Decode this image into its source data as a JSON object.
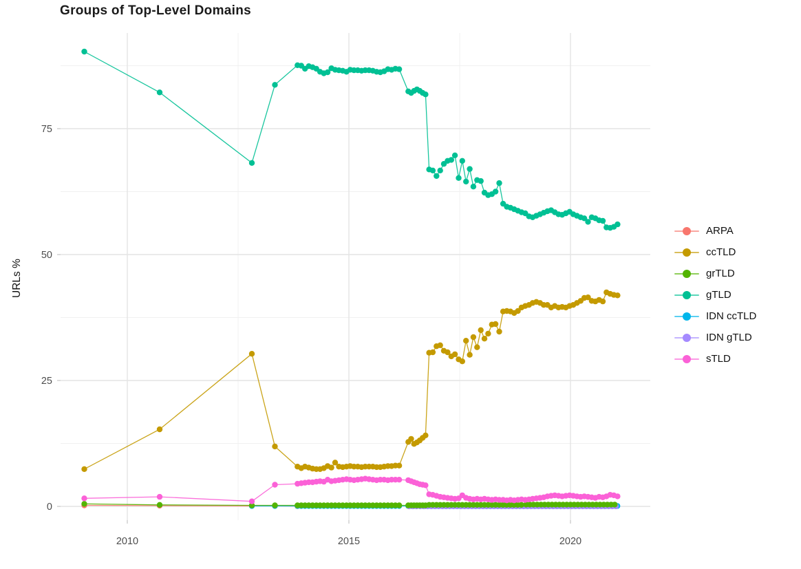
{
  "title": "Groups of Top-Level Domains",
  "axes": {
    "y_title": "URLs %"
  },
  "legend": {
    "items": [
      {
        "label": "ARPA",
        "color": "#F8766D"
      },
      {
        "label": "ccTLD",
        "color": "#C49A00"
      },
      {
        "label": "grTLD",
        "color": "#53B400"
      },
      {
        "label": "gTLD",
        "color": "#00C094"
      },
      {
        "label": "IDN ccTLD",
        "color": "#00B6EB"
      },
      {
        "label": "IDN gTLD",
        "color": "#A58AFF"
      },
      {
        "label": "sTLD",
        "color": "#FB61D7"
      }
    ]
  },
  "chart_data": {
    "type": "line",
    "title": "Groups of Top-Level Domains",
    "xlabel": "",
    "ylabel": "URLs %",
    "grid": "on",
    "legend_position": "right",
    "xlim": [
      2008.5,
      2021.8
    ],
    "ylim": [
      -2.7,
      94
    ],
    "x_ticks": [
      {
        "value": 2010,
        "label": "2010"
      },
      {
        "value": 2015,
        "label": "2015"
      },
      {
        "value": 2020,
        "label": "2020"
      }
    ],
    "y_ticks": [
      {
        "value": 0,
        "label": "0"
      },
      {
        "value": 25,
        "label": "25"
      },
      {
        "value": 50,
        "label": "50"
      },
      {
        "value": 75,
        "label": "75"
      }
    ],
    "x_minor": [
      2012.5,
      2017.5
    ],
    "y_minor": [
      12.5,
      37.5,
      62.5,
      87.5
    ],
    "series": [
      {
        "name": "ARPA",
        "color": "#F8766D",
        "segments": [
          {
            "points": [
              [
                2009.03,
                0.2
              ],
              [
                2010.73,
                0.15
              ],
              [
                2012.81,
                0.1
              ],
              [
                2013.33,
                0.08
              ],
              [
                2013.84,
                0.05
              ]
            ]
          }
        ]
      },
      {
        "name": "IDN ccTLD",
        "color": "#00B6EB",
        "segments": [
          {
            "points": [
              [
                2012.81,
                0.08
              ],
              [
                2013.33,
                0.08
              ]
            ]
          },
          {
            "start": 2013.84,
            "step": 0.085,
            "count": 28,
            "value": 0.08
          },
          {
            "start": 2016.34,
            "step": 0.065,
            "count": 7,
            "value": 0.08
          },
          {
            "start": 2016.81,
            "step": 0.0833,
            "count": 52,
            "value": 0.08
          }
        ]
      },
      {
        "name": "IDN gTLD",
        "color": "#A58AFF",
        "segments": [
          {
            "start": 2016.36,
            "step": 0.0833,
            "count": 57,
            "value": 0.02
          }
        ]
      },
      {
        "name": "grTLD",
        "color": "#53B400",
        "segments": [
          {
            "points": [
              [
                2009.03,
                0.5
              ],
              [
                2010.73,
                0.3
              ],
              [
                2012.81,
                0.2
              ],
              [
                2013.33,
                0.2
              ]
            ]
          },
          {
            "start": 2013.84,
            "step": 0.085,
            "count": 28,
            "value": 0.2
          },
          {
            "start": 2016.34,
            "step": 0.065,
            "count": 7,
            "value": 0.2
          },
          {
            "start": 2016.81,
            "step": 0.0833,
            "count": 26,
            "value": 0.3
          },
          {
            "start": 2019.0,
            "step": 0.0833,
            "count": 25,
            "value": 0.35
          }
        ]
      },
      {
        "name": "sTLD",
        "color": "#FB61D7",
        "segments": [
          {
            "points": [
              [
                2009.03,
                1.6
              ],
              [
                2010.73,
                1.9
              ],
              [
                2012.81,
                1.0
              ],
              [
                2013.33,
                4.3
              ]
            ]
          },
          {
            "start": 2013.84,
            "step": 0.085,
            "values": [
              4.5,
              4.6,
              4.7,
              4.8,
              4.8,
              4.9,
              5.0,
              4.9,
              5.3,
              5.0,
              5.1,
              5.2,
              5.3,
              5.4,
              5.3,
              5.2,
              5.3,
              5.4,
              5.5,
              5.4,
              5.3,
              5.2,
              5.3,
              5.3,
              5.2,
              5.3,
              5.3,
              5.3
            ]
          },
          {
            "start": 2016.34,
            "step": 0.065,
            "values": [
              5.2,
              5.0,
              4.8,
              4.6,
              4.4,
              4.3,
              4.2
            ]
          },
          {
            "start": 2016.81,
            "step": 0.0833,
            "values": [
              2.4,
              2.3,
              2.1,
              1.9,
              1.8,
              1.7,
              1.6,
              1.5,
              1.6,
              2.2,
              1.7,
              1.5,
              1.4,
              1.5,
              1.4,
              1.5,
              1.4,
              1.3,
              1.4,
              1.3
            ]
          },
          {
            "start": 2018.48,
            "step": 0.0833,
            "values": [
              1.3,
              1.2,
              1.3,
              1.2,
              1.3,
              1.4,
              1.3,
              1.4,
              1.5,
              1.6,
              1.7,
              1.8,
              2.0,
              2.1,
              2.2,
              2.1,
              2.0,
              2.1,
              2.2,
              2.1,
              2.0,
              1.9,
              2.0,
              1.9,
              1.8,
              1.7,
              1.9,
              1.8,
              2.0,
              2.3,
              2.2,
              2.0
            ]
          }
        ]
      },
      {
        "name": "ccTLD",
        "color": "#C49A00",
        "segments": [
          {
            "points": [
              [
                2009.03,
                7.4
              ],
              [
                2010.73,
                15.3
              ],
              [
                2012.81,
                30.3
              ],
              [
                2013.33,
                11.9
              ]
            ]
          },
          {
            "start": 2013.84,
            "step": 0.085,
            "values": [
              7.9,
              7.6,
              7.9,
              7.7,
              7.5,
              7.4,
              7.4,
              7.6,
              8.0,
              7.7,
              8.7,
              7.9,
              7.8,
              7.9,
              8.0,
              7.9,
              7.9,
              7.8,
              7.9,
              7.9,
              7.9,
              7.8,
              7.8,
              7.9,
              8.0,
              8.0,
              8.1,
              8.1
            ]
          },
          {
            "start": 2016.34,
            "step": 0.065,
            "values": [
              12.8,
              13.4,
              12.4,
              12.7,
              13.1,
              13.6,
              14.1
            ]
          },
          {
            "start": 2016.81,
            "step": 0.0833,
            "values": [
              30.5,
              30.6,
              31.8,
              32.0,
              30.9,
              30.6,
              29.8,
              30.2,
              29.2,
              28.8,
              32.9,
              30.1,
              33.6,
              31.6,
              35.0,
              33.3,
              34.3,
              36.1,
              36.2,
              34.7
            ]
          },
          {
            "start": 2018.48,
            "step": 0.0833,
            "values": [
              38.7,
              38.8,
              38.7,
              38.4,
              38.8,
              39.5,
              39.8,
              40.0,
              40.4,
              40.6,
              40.4,
              40.0,
              40.0,
              39.5,
              39.8,
              39.5,
              39.6,
              39.5,
              39.8,
              40.0,
              40.4,
              40.8,
              41.4,
              41.5,
              40.8,
              40.7,
              41.0,
              40.7,
              42.5,
              42.2,
              42.0,
              41.9
            ]
          }
        ]
      },
      {
        "name": "gTLD",
        "color": "#00C094",
        "segments": [
          {
            "points": [
              [
                2009.03,
                90.3
              ],
              [
                2010.73,
                82.2
              ],
              [
                2012.81,
                68.2
              ],
              [
                2013.33,
                83.7
              ]
            ]
          },
          {
            "start": 2013.84,
            "step": 0.085,
            "values": [
              87.6,
              87.5,
              86.9,
              87.4,
              87.2,
              86.9,
              86.3,
              86.0,
              86.2,
              87.0,
              86.7,
              86.6,
              86.5,
              86.3,
              86.7,
              86.6,
              86.6,
              86.5,
              86.6,
              86.6,
              86.5,
              86.3,
              86.2,
              86.4,
              86.8,
              86.7,
              86.9,
              86.8
            ]
          },
          {
            "start": 2016.34,
            "step": 0.065,
            "values": [
              82.4,
              82.1,
              82.5,
              82.8,
              82.5,
              82.1,
              81.8
            ]
          },
          {
            "start": 2016.81,
            "step": 0.0833,
            "values": [
              66.9,
              66.7,
              65.6,
              66.7,
              68.0,
              68.6,
              68.8,
              69.7,
              65.2,
              68.6,
              64.5,
              67.0,
              63.5,
              64.8,
              64.6,
              62.3,
              61.8,
              62.0,
              62.5,
              64.2
            ]
          },
          {
            "start": 2018.48,
            "step": 0.0833,
            "values": [
              60.1,
              59.5,
              59.3,
              59.0,
              58.7,
              58.4,
              58.2,
              57.6,
              57.4,
              57.7,
              58.0,
              58.3,
              58.6,
              58.8,
              58.4,
              58.0,
              57.9,
              58.2,
              58.5,
              58.0,
              57.7,
              57.4,
              57.2,
              56.5,
              57.4,
              57.2,
              56.8,
              56.7,
              55.4,
              55.3,
              55.5,
              56.0
            ]
          }
        ]
      }
    ]
  }
}
